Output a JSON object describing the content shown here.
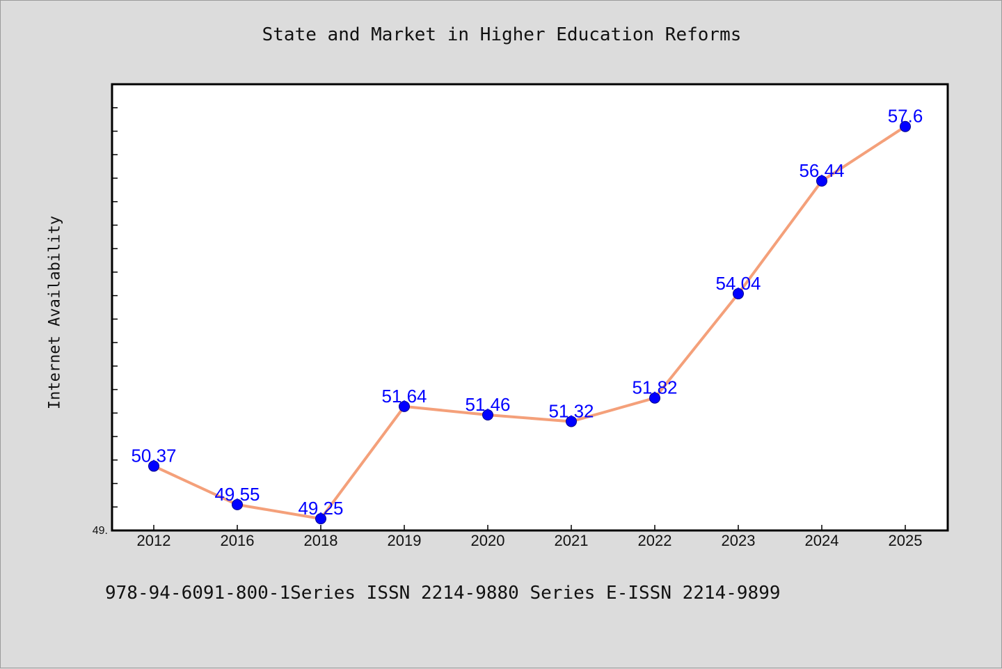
{
  "page": {
    "footer_note": "978-94-6091-800-1Series ISSN 2214-9880 Series E-ISSN 2214-9899",
    "background_color": "#dcdcdc"
  },
  "chart_data": {
    "type": "line",
    "title": "State and Market in Higher Education Reforms",
    "xlabel": "",
    "ylabel": "Internet Availability",
    "categories": [
      "2012",
      "2016",
      "2018",
      "2019",
      "2020",
      "2021",
      "2022",
      "2023",
      "2024",
      "2025"
    ],
    "series": [
      {
        "values": [
          50.37,
          49.55,
          49.25,
          51.64,
          51.46,
          51.32,
          51.82,
          54.04,
          56.44,
          57.6
        ],
        "labels": [
          "50.37",
          "49.55",
          "49.25",
          "51.64",
          "51.46",
          "51.32",
          "51.82",
          "54.04",
          "56.44",
          "57.6"
        ],
        "line_color": "#f4a07a",
        "marker_color": "#0000ff",
        "label_color": "#0000ff"
      }
    ],
    "ylim": [
      49.0,
      58.5
    ],
    "y_min_label": "49.",
    "grid": false,
    "legend": "none",
    "plot_background": "#ffffff"
  }
}
